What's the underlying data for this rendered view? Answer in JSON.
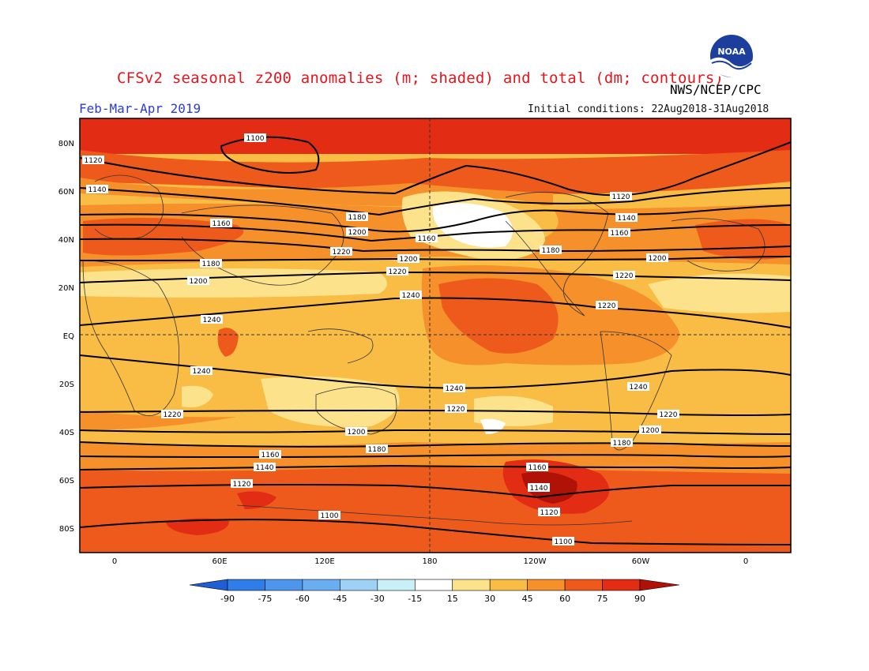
{
  "header": {
    "title": "CFSv2 seasonal z200 anomalies (m; shaded) and total (dm; contours)",
    "period": "Feb-Mar-Apr 2019",
    "initial_conditions": "Initial conditions: 22Aug2018-31Aug2018",
    "agency": "NWS/NCEP/CPC",
    "logo_text": "NOAA"
  },
  "map": {
    "lat_labels": [
      "80N",
      "60N",
      "40N",
      "20N",
      "EQ",
      "20S",
      "40S",
      "60S",
      "80S"
    ],
    "lon_labels": [
      "0",
      "60E",
      "120E",
      "180",
      "120W",
      "60W",
      "0"
    ],
    "contour_labels": [
      "1100",
      "1120",
      "1140",
      "1160",
      "1180",
      "1200",
      "1220",
      "1240",
      "1120",
      "1140",
      "1160",
      "1180",
      "1200",
      "1220",
      "1240",
      "1160",
      "1180",
      "1200",
      "1220",
      "1240",
      "1100",
      "1120",
      "1140",
      "1160",
      "1180",
      "1200",
      "1220",
      "1240",
      "1240",
      "1240",
      "1220",
      "1220",
      "1220",
      "1200",
      "1200",
      "1180",
      "1180",
      "1160",
      "1160",
      "1140",
      "1140",
      "1120",
      "1120",
      "1100",
      "1100"
    ]
  },
  "colorbar": {
    "labels": [
      "-90",
      "-75",
      "-60",
      "-45",
      "-30",
      "-15",
      "15",
      "30",
      "45",
      "60",
      "75",
      "90"
    ],
    "colors": [
      "#1e5fd6",
      "#2f7de8",
      "#4e95ee",
      "#6aaef2",
      "#9dd1f6",
      "#c9f0f6",
      "#ffffff",
      "#fde28c",
      "#f9bd45",
      "#f5902a",
      "#ee5a1c",
      "#e22c14",
      "#b01208"
    ]
  }
}
